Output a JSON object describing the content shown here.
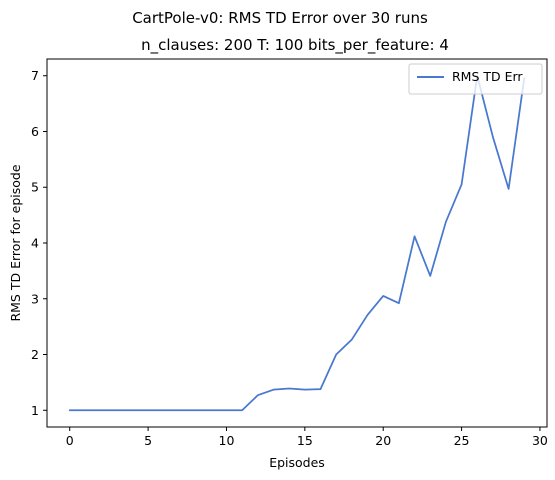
{
  "chart_data": {
    "type": "line",
    "title": "CartPole-v0: RMS TD Error over 30 runs",
    "subtitle": "n_clauses: 200 T: 100 bits_per_feature: 4",
    "xlabel": "Episodes",
    "ylabel": "RMS TD Error for episode",
    "xlim": [
      -1.45,
      30.45
    ],
    "ylim": [
      0.7,
      7.3
    ],
    "xticks": [
      0,
      5,
      10,
      15,
      20,
      25,
      30
    ],
    "yticks": [
      1,
      2,
      3,
      4,
      5,
      6,
      7
    ],
    "grid": false,
    "legend_position": "top-right",
    "series": [
      {
        "name": "RMS TD Err",
        "color": "#4878cf",
        "x": [
          0,
          1,
          2,
          3,
          4,
          5,
          6,
          7,
          8,
          9,
          10,
          11,
          12,
          13,
          14,
          15,
          16,
          17,
          18,
          19,
          20,
          21,
          22,
          23,
          24,
          25,
          26,
          27,
          28,
          29
        ],
        "y": [
          1.0,
          1.0,
          1.0,
          1.0,
          1.0,
          1.0,
          1.0,
          1.0,
          1.0,
          1.0,
          1.0,
          1.0,
          1.27,
          1.37,
          1.39,
          1.37,
          1.38,
          2.0,
          2.27,
          2.71,
          3.05,
          2.92,
          4.12,
          3.41,
          4.38,
          5.05,
          7.0,
          5.9,
          4.97,
          6.96
        ]
      }
    ]
  }
}
